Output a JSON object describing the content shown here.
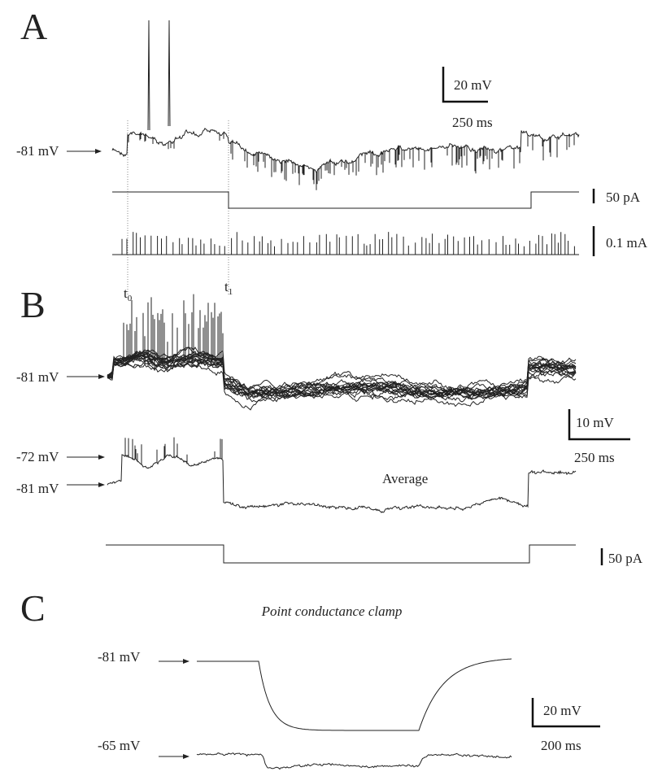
{
  "panel_a": {
    "label": "A",
    "scale_v": "20 mV",
    "scale_t": "250 ms",
    "potential": "-81 mV",
    "current_scale": "50 pA",
    "input_scale": "0.1 mA"
  },
  "times": {
    "t0": {
      "base": "t",
      "sub": "0"
    },
    "t1": {
      "base": "t",
      "sub": "1"
    }
  },
  "panel_b": {
    "label": "B",
    "potential": "-81 mV",
    "scale_v": "10 mV",
    "scale_t": "250 ms",
    "avg_upper": "-72 mV",
    "avg_lower": "-81 mV",
    "average": "Average",
    "current_scale": "50 pA"
  },
  "panel_c": {
    "label": "C",
    "title": "Point conductance clamp",
    "upper": "-81 mV",
    "scale_v": "20 mV",
    "scale_t": "200 ms",
    "lower": "-65 mV"
  }
}
